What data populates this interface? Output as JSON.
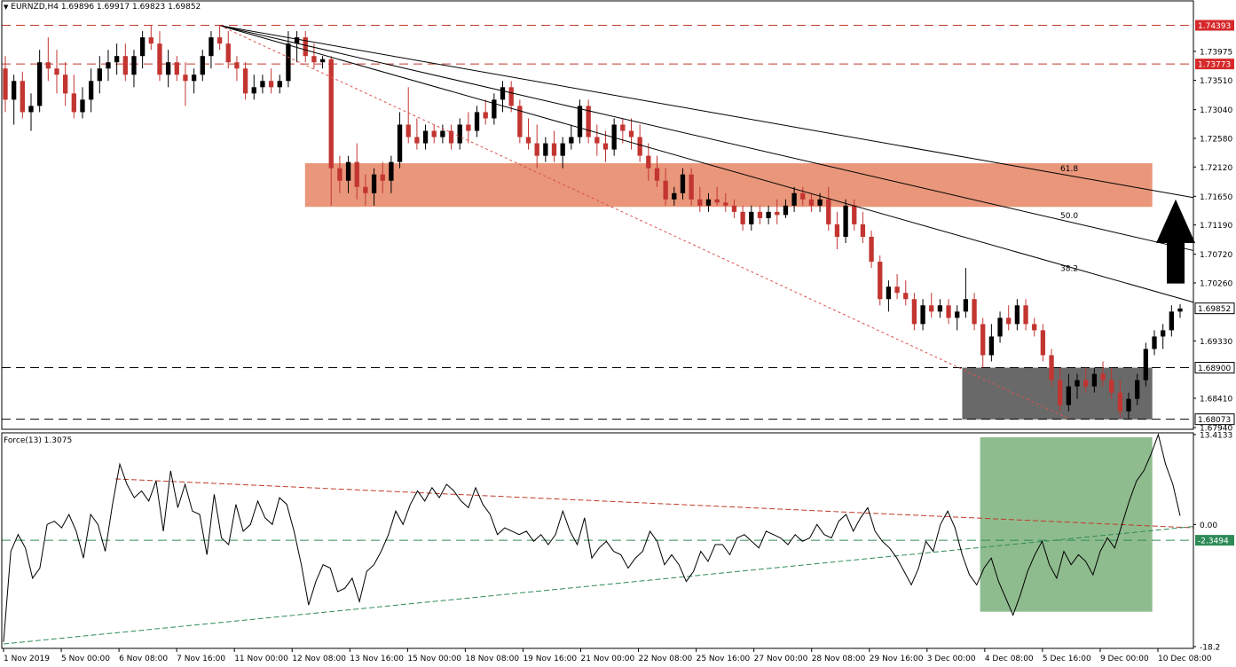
{
  "header": {
    "symbol_line": "EURNZD,H4  1.69896 1.69917 1.69823 1.69852",
    "indicator_line": "Force(13) 1.3075"
  },
  "colors": {
    "bull": "#000000",
    "bear": "#c23531",
    "resistance_zone": "#e9967a",
    "support_zone": "#696969",
    "force_zone": "#8fbc8f",
    "red_tag": "#d6282b",
    "green_tag": "#2e8b57"
  },
  "chart_data": [
    {
      "type": "candlestick",
      "title": "EURNZD,H4",
      "ohlc_header": {
        "open": 1.69896,
        "high": 1.69917,
        "low": 1.69823,
        "close": 1.69852
      },
      "ylim": [
        1.6794,
        1.746
      ],
      "y_ticks": [
        "1.73975",
        "1.73510",
        "1.73040",
        "1.72580",
        "1.72120",
        "1.71650",
        "1.71190",
        "1.70720",
        "1.70260",
        "1.69330",
        "1.68410",
        "1.67940"
      ],
      "x_ticks": [
        "1 Nov 2019",
        "5 Nov 00:00",
        "6 Nov 08:00",
        "7 Nov 16:00",
        "11 Nov 00:00",
        "12 Nov 08:00",
        "13 Nov 16:00",
        "15 Nov 00:00",
        "18 Nov 08:00",
        "19 Nov 16:00",
        "21 Nov 00:00",
        "22 Nov 08:00",
        "25 Nov 16:00",
        "27 Nov 00:00",
        "28 Nov 08:00",
        "29 Nov 16:00",
        "3 Dec 00:00",
        "4 Dec 08:00",
        "5 Dec 16:00",
        "9 Dec 00:00",
        "10 Dec 08:00"
      ],
      "horizontal_levels": [
        {
          "value": 1.74393,
          "label": "1.74393",
          "color": "red"
        },
        {
          "value": 1.73773,
          "label": "1.73773",
          "color": "red"
        },
        {
          "value": 1.689,
          "label": "1.68900",
          "color": "black"
        },
        {
          "value": 1.68073,
          "label": "1.68073",
          "color": "black"
        }
      ],
      "current_price": {
        "value": 1.69852,
        "label": "1.69852"
      },
      "resistance_zone": {
        "y_top": 1.7218,
        "y_bottom": 1.7148,
        "x_start": 0.2545,
        "x_end": 0.9655
      },
      "support_zone": {
        "y_top": 1.689,
        "y_bottom": 1.6807,
        "x_start": 0.806,
        "x_end": 0.9655
      },
      "fib_fan_labels": [
        "61.8",
        "50.0",
        "38.2"
      ],
      "candles": [
        [
          1.737,
          1.739,
          1.73,
          1.732
        ],
        [
          1.732,
          1.736,
          1.728,
          1.735
        ],
        [
          1.735,
          1.7365,
          1.729,
          1.73
        ],
        [
          1.73,
          1.733,
          1.727,
          1.731
        ],
        [
          1.731,
          1.74,
          1.73,
          1.738
        ],
        [
          1.738,
          1.742,
          1.735,
          1.737
        ],
        [
          1.737,
          1.74,
          1.733,
          1.736
        ],
        [
          1.736,
          1.738,
          1.731,
          1.733
        ],
        [
          1.733,
          1.736,
          1.729,
          1.73
        ],
        [
          1.73,
          1.734,
          1.729,
          1.732
        ],
        [
          1.732,
          1.737,
          1.73,
          1.735
        ],
        [
          1.735,
          1.739,
          1.733,
          1.737
        ],
        [
          1.737,
          1.74,
          1.735,
          1.738
        ],
        [
          1.738,
          1.741,
          1.736,
          1.739
        ],
        [
          1.739,
          1.741,
          1.735,
          1.736
        ],
        [
          1.736,
          1.74,
          1.734,
          1.739
        ],
        [
          1.739,
          1.743,
          1.737,
          1.742
        ],
        [
          1.742,
          1.744,
          1.74,
          1.741
        ],
        [
          1.741,
          1.743,
          1.735,
          1.736
        ],
        [
          1.736,
          1.74,
          1.734,
          1.738
        ],
        [
          1.738,
          1.739,
          1.735,
          1.736
        ],
        [
          1.736,
          1.738,
          1.731,
          1.735
        ],
        [
          1.735,
          1.737,
          1.733,
          1.736
        ],
        [
          1.736,
          1.74,
          1.735,
          1.739
        ],
        [
          1.739,
          1.743,
          1.737,
          1.742
        ],
        [
          1.742,
          1.7439,
          1.74,
          1.741
        ],
        [
          1.741,
          1.743,
          1.737,
          1.738
        ],
        [
          1.738,
          1.739,
          1.735,
          1.737
        ],
        [
          1.737,
          1.738,
          1.732,
          1.733
        ],
        [
          1.733,
          1.736,
          1.732,
          1.734
        ],
        [
          1.734,
          1.736,
          1.733,
          1.735
        ],
        [
          1.735,
          1.737,
          1.733,
          1.734
        ],
        [
          1.734,
          1.736,
          1.733,
          1.735
        ],
        [
          1.735,
          1.743,
          1.734,
          1.741
        ],
        [
          1.741,
          1.743,
          1.738,
          1.742
        ],
        [
          1.742,
          1.743,
          1.738,
          1.739
        ],
        [
          1.739,
          1.741,
          1.737,
          1.738
        ],
        [
          1.738,
          1.739,
          1.737,
          1.7385
        ],
        [
          1.7385,
          1.739,
          1.715,
          1.721
        ],
        [
          1.721,
          1.723,
          1.717,
          1.719
        ],
        [
          1.719,
          1.723,
          1.717,
          1.722
        ],
        [
          1.722,
          1.725,
          1.716,
          1.718
        ],
        [
          1.718,
          1.72,
          1.715,
          1.717
        ],
        [
          1.717,
          1.721,
          1.715,
          1.72
        ],
        [
          1.72,
          1.722,
          1.717,
          1.719
        ],
        [
          1.719,
          1.723,
          1.717,
          1.722
        ],
        [
          1.722,
          1.73,
          1.721,
          1.728
        ],
        [
          1.728,
          1.734,
          1.725,
          1.726
        ],
        [
          1.726,
          1.729,
          1.724,
          1.725
        ],
        [
          1.725,
          1.728,
          1.724,
          1.727
        ],
        [
          1.727,
          1.728,
          1.725,
          1.726
        ],
        [
          1.726,
          1.728,
          1.725,
          1.727
        ],
        [
          1.727,
          1.728,
          1.724,
          1.725
        ],
        [
          1.725,
          1.729,
          1.724,
          1.728
        ],
        [
          1.728,
          1.73,
          1.725,
          1.727
        ],
        [
          1.727,
          1.731,
          1.726,
          1.73
        ],
        [
          1.73,
          1.732,
          1.728,
          1.729
        ],
        [
          1.729,
          1.733,
          1.728,
          1.732
        ],
        [
          1.732,
          1.735,
          1.73,
          1.734
        ],
        [
          1.734,
          1.735,
          1.73,
          1.731
        ],
        [
          1.731,
          1.732,
          1.725,
          1.726
        ],
        [
          1.726,
          1.729,
          1.724,
          1.725
        ],
        [
          1.725,
          1.728,
          1.721,
          1.723
        ],
        [
          1.723,
          1.726,
          1.722,
          1.725
        ],
        [
          1.725,
          1.727,
          1.722,
          1.723
        ],
        [
          1.723,
          1.726,
          1.721,
          1.725
        ],
        [
          1.725,
          1.728,
          1.724,
          1.726
        ],
        [
          1.726,
          1.732,
          1.725,
          1.731
        ],
        [
          1.731,
          1.732,
          1.725,
          1.726
        ],
        [
          1.726,
          1.728,
          1.723,
          1.725
        ],
        [
          1.725,
          1.727,
          1.722,
          1.724
        ],
        [
          1.724,
          1.729,
          1.723,
          1.728
        ],
        [
          1.728,
          1.729,
          1.725,
          1.727
        ],
        [
          1.727,
          1.729,
          1.724,
          1.726
        ],
        [
          1.726,
          1.728,
          1.722,
          1.723
        ],
        [
          1.723,
          1.725,
          1.719,
          1.721
        ],
        [
          1.721,
          1.723,
          1.718,
          1.719
        ],
        [
          1.719,
          1.721,
          1.715,
          1.716
        ],
        [
          1.716,
          1.718,
          1.715,
          1.717
        ],
        [
          1.717,
          1.721,
          1.716,
          1.72
        ],
        [
          1.72,
          1.721,
          1.715,
          1.716
        ],
        [
          1.716,
          1.718,
          1.714,
          1.715
        ],
        [
          1.715,
          1.717,
          1.714,
          1.716
        ],
        [
          1.716,
          1.718,
          1.715,
          1.7155
        ],
        [
          1.7155,
          1.717,
          1.714,
          1.715
        ],
        [
          1.715,
          1.716,
          1.713,
          1.714
        ],
        [
          1.714,
          1.715,
          1.711,
          1.712
        ],
        [
          1.712,
          1.715,
          1.711,
          1.714
        ],
        [
          1.714,
          1.715,
          1.712,
          1.713
        ],
        [
          1.713,
          1.715,
          1.712,
          1.714
        ],
        [
          1.714,
          1.716,
          1.712,
          1.7135
        ],
        [
          1.7135,
          1.716,
          1.713,
          1.715
        ],
        [
          1.715,
          1.718,
          1.714,
          1.717
        ],
        [
          1.717,
          1.718,
          1.715,
          1.716
        ],
        [
          1.716,
          1.717,
          1.714,
          1.715
        ],
        [
          1.715,
          1.717,
          1.714,
          1.716
        ],
        [
          1.716,
          1.718,
          1.711,
          1.712
        ],
        [
          1.712,
          1.714,
          1.708,
          1.71
        ],
        [
          1.71,
          1.716,
          1.709,
          1.715
        ],
        [
          1.715,
          1.716,
          1.711,
          1.712
        ],
        [
          1.712,
          1.714,
          1.709,
          1.71
        ],
        [
          1.71,
          1.711,
          1.705,
          1.706
        ],
        [
          1.706,
          1.707,
          1.699,
          1.7
        ],
        [
          1.7,
          1.703,
          1.698,
          1.702
        ],
        [
          1.702,
          1.704,
          1.7,
          1.701
        ],
        [
          1.701,
          1.703,
          1.699,
          1.7
        ],
        [
          1.7,
          1.701,
          1.695,
          1.696
        ],
        [
          1.696,
          1.7,
          1.695,
          1.699
        ],
        [
          1.699,
          1.701,
          1.697,
          1.698
        ],
        [
          1.698,
          1.7,
          1.697,
          1.699
        ],
        [
          1.699,
          1.7,
          1.696,
          1.697
        ],
        [
          1.697,
          1.699,
          1.695,
          1.698
        ],
        [
          1.698,
          1.705,
          1.697,
          1.7
        ],
        [
          1.7,
          1.701,
          1.695,
          1.696
        ],
        [
          1.696,
          1.697,
          1.689,
          1.691
        ],
        [
          1.691,
          1.696,
          1.69,
          1.694
        ],
        [
          1.694,
          1.698,
          1.693,
          1.697
        ],
        [
          1.697,
          1.699,
          1.695,
          1.696
        ],
        [
          1.696,
          1.7,
          1.695,
          1.699
        ],
        [
          1.699,
          1.7,
          1.695,
          1.696
        ],
        [
          1.696,
          1.697,
          1.694,
          1.695
        ],
        [
          1.695,
          1.696,
          1.69,
          1.691
        ],
        [
          1.691,
          1.692,
          1.686,
          1.687
        ],
        [
          1.687,
          1.689,
          1.682,
          1.683
        ],
        [
          1.683,
          1.688,
          1.682,
          1.686
        ],
        [
          1.686,
          1.688,
          1.684,
          1.687
        ],
        [
          1.687,
          1.689,
          1.685,
          1.686
        ],
        [
          1.686,
          1.689,
          1.685,
          1.688
        ],
        [
          1.688,
          1.69,
          1.686,
          1.687
        ],
        [
          1.687,
          1.689,
          1.684,
          1.685
        ],
        [
          1.685,
          1.687,
          1.681,
          1.682
        ],
        [
          1.682,
          1.685,
          1.6807,
          1.684
        ],
        [
          1.684,
          1.688,
          1.683,
          1.687
        ],
        [
          1.687,
          1.693,
          1.686,
          1.692
        ],
        [
          1.692,
          1.695,
          1.691,
          1.694
        ],
        [
          1.694,
          1.696,
          1.692,
          1.695
        ],
        [
          1.695,
          1.699,
          1.694,
          1.698
        ],
        [
          1.698,
          1.6992,
          1.697,
          1.6985
        ]
      ]
    },
    {
      "type": "line",
      "title": "Force(13) 1.3075",
      "ylim": [
        -18.2,
        13.4
      ],
      "y_ticks": [
        "13.4133",
        "0.00",
        "-18.2"
      ],
      "levels": [
        {
          "value": -2.3494,
          "label": "-2.3494",
          "color": "green"
        }
      ],
      "green_zone": {
        "y_top": 13.0,
        "y_bottom": -13.0,
        "x_start": 0.821,
        "x_end": 0.9655
      },
      "values": [
        -17.5,
        -4,
        -1.5,
        -3.5,
        -8,
        -6.5,
        0,
        0.5,
        -0.5,
        1.5,
        -1,
        -5,
        1.5,
        0,
        -4,
        3,
        9,
        6,
        4,
        5,
        3.5,
        6.5,
        -1,
        8,
        2.5,
        6,
        2,
        1.5,
        -4.5,
        4.5,
        -2,
        -3,
        3,
        -1,
        0,
        3.5,
        1,
        0,
        4,
        3,
        -1,
        -6,
        -12,
        -8.5,
        -6,
        -6.5,
        -10,
        -9.5,
        -8,
        -11.5,
        -7,
        -6,
        -4,
        -1.5,
        2,
        0,
        3,
        5,
        3.5,
        5.5,
        4,
        6,
        5,
        3.5,
        2.5,
        5.5,
        3,
        1.5,
        -1.5,
        -0.5,
        -1,
        -1.5,
        -1,
        -2.5,
        -1.5,
        -3,
        -1.5,
        2,
        -1,
        -3,
        1,
        -5,
        -3.5,
        -2.5,
        -4,
        -4.5,
        -6.5,
        -5,
        -4,
        -1,
        -2.5,
        -6,
        -4.5,
        -6,
        -8.5,
        -7,
        -4,
        -5.5,
        -3,
        -3,
        -4.5,
        -2,
        -1.5,
        -2.5,
        -3.5,
        -1,
        -1.5,
        -2,
        -3,
        -1.5,
        -2.5,
        -2,
        0,
        -1.5,
        -2,
        0.5,
        1.5,
        -1,
        1,
        2.5,
        -1,
        -2.5,
        -3.5,
        -5,
        -7,
        -9,
        -6.5,
        -2.5,
        -4,
        0,
        2,
        -0.5,
        -4.5,
        -7.5,
        -9,
        -6.5,
        -5,
        -8.5,
        -11,
        -13.5,
        -10.5,
        -7,
        -4.5,
        -2.5,
        -6,
        -8,
        -4,
        -6,
        -4.5,
        -5.5,
        -7.5,
        -4,
        -2,
        -3.5,
        0,
        3.5,
        6.5,
        8,
        10.5,
        13.4,
        9,
        6,
        1.3075
      ]
    }
  ]
}
